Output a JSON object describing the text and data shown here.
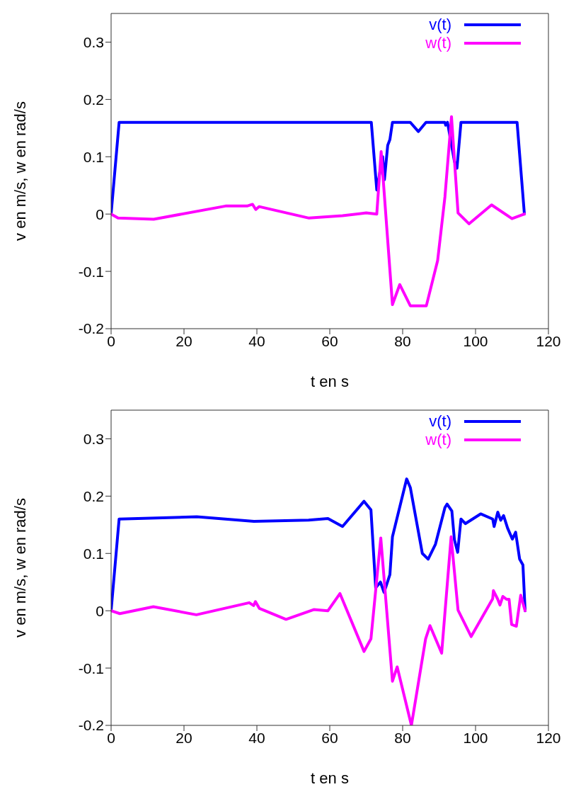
{
  "chart_data": [
    {
      "type": "line",
      "xlabel": "t en s",
      "ylabel": "v en m/s, w en rad/s",
      "xlim": [
        0,
        120
      ],
      "xticks": [
        0,
        20,
        40,
        60,
        80,
        100,
        120
      ],
      "ylim": [
        -0.2,
        0.35
      ],
      "yticks": [
        -0.2,
        -0.1,
        0,
        0.1,
        0.2,
        0.3
      ],
      "legend": "top right",
      "marker": "none",
      "line_style": "solid",
      "series": [
        {
          "name": "v(t)",
          "color": "#0000ff",
          "x": [
            0,
            2.2,
            71.4,
            72.9,
            74.5,
            75.0,
            75.9,
            76.5,
            77.2,
            82.1,
            84.3,
            86.4,
            91.6,
            91.8,
            92.3,
            94.2,
            94.9,
            96.0,
            111.4,
            113.4
          ],
          "values": [
            0,
            0.16,
            0.16,
            0.042,
            0.1,
            0.06,
            0.12,
            0.13,
            0.16,
            0.16,
            0.144,
            0.16,
            0.16,
            0.155,
            0.16,
            0.092,
            0.08,
            0.16,
            0.16,
            0
          ]
        },
        {
          "name": "w(t)",
          "color": "#ff00ff",
          "x": [
            0,
            1.9,
            11.7,
            31.4,
            37.3,
            38.8,
            39.7,
            40.6,
            54.3,
            63.5,
            70,
            72.9,
            74.1,
            77.2,
            79.2,
            82.1,
            86.5,
            89.6,
            91.6,
            93.4,
            95.2,
            98.2,
            104.4,
            110,
            113.4
          ],
          "values": [
            0,
            -0.007,
            -0.009,
            0.014,
            0.014,
            0.017,
            0.008,
            0.013,
            -0.007,
            -0.003,
            0.002,
            0,
            0.109,
            -0.158,
            -0.123,
            -0.16,
            -0.16,
            -0.081,
            0.03,
            0.17,
            0.002,
            -0.017,
            0.016,
            -0.008,
            0
          ]
        }
      ]
    },
    {
      "type": "line",
      "xlabel": "t en s",
      "ylabel": "v en m/s, w en rad/s",
      "xlim": [
        0,
        120
      ],
      "xticks": [
        0,
        20,
        40,
        60,
        80,
        100,
        120
      ],
      "ylim": [
        -0.2,
        0.35
      ],
      "yticks": [
        -0.2,
        -0.1,
        0,
        0.1,
        0.2,
        0.3
      ],
      "legend": "top right",
      "marker": "none",
      "line_style": "solid",
      "series": [
        {
          "name": "v(t)",
          "color": "#0000ff",
          "x": [
            0,
            2.2,
            23.5,
            39.2,
            54.2,
            59.5,
            63.5,
            69.4,
            71.3,
            72.6,
            73.9,
            74.9,
            76.5,
            77.2,
            81.1,
            82.1,
            85.4,
            87.0,
            89.0,
            91.6,
            92.2,
            93.5,
            94.2,
            95.1,
            96.0,
            97.2,
            101.4,
            104.7,
            105.1,
            106.1,
            106.9,
            107.7,
            108.8,
            110.1,
            111.0,
            112.1,
            113.0,
            113.6
          ],
          "values": [
            0,
            0.16,
            0.164,
            0.156,
            0.158,
            0.161,
            0.147,
            0.191,
            0.176,
            0.04,
            0.05,
            0.032,
            0.063,
            0.129,
            0.23,
            0.215,
            0.1,
            0.09,
            0.116,
            0.18,
            0.186,
            0.174,
            0.124,
            0.102,
            0.16,
            0.152,
            0.169,
            0.16,
            0.147,
            0.172,
            0.158,
            0.166,
            0.144,
            0.125,
            0.137,
            0.09,
            0.08,
            0
          ]
        },
        {
          "name": "w(t)",
          "color": "#ff00ff",
          "x": [
            0,
            2.4,
            11.6,
            23.4,
            37.9,
            39.1,
            39.6,
            40.7,
            48.0,
            55.6,
            59.5,
            62.8,
            69.4,
            71.3,
            74.0,
            77.2,
            78.5,
            82.4,
            86.3,
            87.5,
            90.7,
            93.3,
            95.2,
            98.8,
            104.7,
            104.9,
            106.1,
            106.7,
            107.5,
            108.5,
            109.2,
            109.9,
            111.2,
            112.4,
            113.6
          ],
          "values": [
            0,
            -0.005,
            0.007,
            -0.007,
            0.014,
            0.009,
            0.016,
            0.004,
            -0.015,
            0.002,
            0,
            0.03,
            -0.071,
            -0.049,
            0.127,
            -0.123,
            -0.098,
            -0.2,
            -0.049,
            -0.026,
            -0.074,
            0.129,
            0.001,
            -0.045,
            0.021,
            0.035,
            0.02,
            0.01,
            0.025,
            0.02,
            0.02,
            -0.024,
            -0.027,
            0.027,
            0
          ]
        }
      ]
    }
  ]
}
